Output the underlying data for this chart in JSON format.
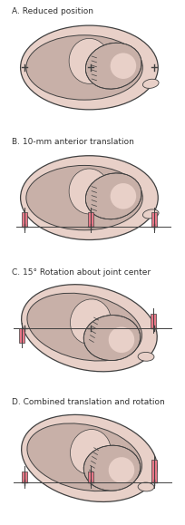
{
  "panels": [
    {
      "label": "A. Reduced position"
    },
    {
      "label": "B. 10-mm anterior translation"
    },
    {
      "label": "C. 15° Rotation about joint center"
    },
    {
      "label": "D. Combined translation and rotation"
    }
  ],
  "outer_color": "#e8d0c8",
  "inner_color": "#c8b0a8",
  "background": "#ffffff",
  "pink_color": "#e87888",
  "line_color": "#404040",
  "text_color": "#303030",
  "label_fontsize": 6.5
}
